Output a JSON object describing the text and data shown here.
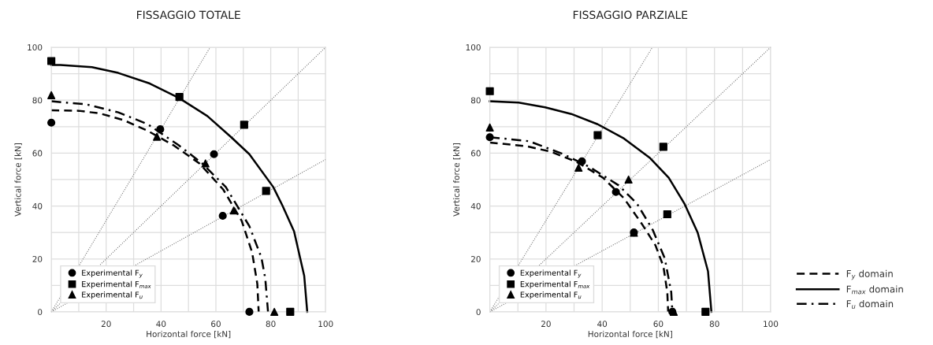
{
  "chart_data": [
    {
      "type": "scatter",
      "title": "FISSAGGIO TOTALE",
      "xlabel": "Horizontal force [kN]",
      "ylabel": "Vertical force [kN]",
      "xlim": [
        0,
        100
      ],
      "ylim": [
        0,
        100
      ],
      "xticks": [
        {
          "value": 0,
          "label": null
        },
        {
          "value": 10,
          "label": null
        },
        20,
        {
          "value": 30,
          "label": null
        },
        40,
        {
          "value": 50,
          "label": null
        },
        60,
        {
          "value": 70,
          "label": null
        },
        80,
        {
          "value": 90,
          "label": null
        },
        100
      ],
      "yticks": [
        0,
        {
          "value": 10,
          "label": null
        },
        20,
        {
          "value": 30,
          "label": null
        },
        40,
        {
          "value": 50,
          "label": null
        },
        60,
        {
          "value": 70,
          "label": null
        },
        80,
        {
          "value": 90,
          "label": null
        },
        100
      ],
      "grid": true,
      "legend": "bottom left",
      "series": [
        {
          "type": "line",
          "color": "#777777",
          "line_style": "dotted",
          "marker": "none",
          "x": [
            0,
            57.9
          ],
          "values": [
            0,
            100
          ]
        },
        {
          "type": "line",
          "color": "#777777",
          "line_style": "dotted",
          "marker": "none",
          "x": [
            0,
            100
          ],
          "values": [
            0,
            100
          ]
        },
        {
          "type": "line",
          "color": "#777777",
          "line_style": "dotted",
          "marker": "none",
          "x": [
            0,
            100
          ],
          "values": [
            0,
            57.6
          ]
        },
        {
          "type": "line",
          "color": "#000000",
          "line_style": "dashed",
          "marker": "none",
          "x": [
            0,
            10,
            17.7,
            26.3,
            35,
            44.5,
            54,
            62.7,
            69.4,
            73.2,
            75.1,
            75.6
          ],
          "values": [
            76.2,
            76,
            75,
            72.5,
            68.5,
            63,
            56.1,
            46.2,
            34.4,
            22.5,
            10.6,
            0
          ]
        },
        {
          "type": "line",
          "color": "#000000",
          "line_style": "solid",
          "marker": "none",
          "x": [
            0,
            3.3,
            14.8,
            24.4,
            35.9,
            46.4,
            56.9,
            65.6,
            72.2,
            80.9,
            84.2,
            88.5,
            92.2,
            93.3
          ],
          "values": [
            93.3,
            93.3,
            92.5,
            90.3,
            86.3,
            80.9,
            74,
            66,
            59.6,
            47.2,
            40.3,
            30.4,
            13.6,
            0
          ]
        },
        {
          "type": "line",
          "color": "#000000",
          "line_style": "dashdot",
          "marker": "none",
          "x": [
            0,
            12.9,
            24.4,
            35,
            46.4,
            55,
            63.6,
            72.2,
            76.6,
            78,
            79
          ],
          "values": [
            79.6,
            78.4,
            75.4,
            71,
            63,
            56.1,
            47.2,
            32.4,
            20.5,
            12.6,
            0
          ]
        },
        {
          "name": "Experimental F$_{y}$",
          "color": "#000000",
          "marker": "circle",
          "x": [
            0,
            39.7,
            59.3,
            62.5,
            72.2
          ],
          "values": [
            71.5,
            69,
            59.6,
            36.3,
            0
          ]
        },
        {
          "name": "Experimental F$_{max}$",
          "color": "#000000",
          "marker": "square",
          "x": [
            0,
            46.7,
            70.3,
            78.3,
            87.1
          ],
          "values": [
            94.8,
            81.2,
            70.7,
            45.7,
            0
          ]
        },
        {
          "name": "Experimental F$_{u}$",
          "color": "#000000",
          "marker": "triangle",
          "x": [
            0,
            38.5,
            56.2,
            66.5,
            81.3
          ],
          "values": [
            81.9,
            66.2,
            56.1,
            38.3,
            0
          ]
        }
      ]
    },
    {
      "type": "scatter",
      "title": "FISSAGGIO PARZIALE",
      "xlabel": "Horizontal force [kN]",
      "ylabel": "Vertical force [kN]",
      "xlim": [
        0,
        100
      ],
      "ylim": [
        0,
        100
      ],
      "xticks": [
        {
          "value": 0,
          "label": null
        },
        {
          "value": 10,
          "label": null
        },
        20,
        {
          "value": 30,
          "label": null
        },
        40,
        {
          "value": 50,
          "label": null
        },
        60,
        {
          "value": 70,
          "label": null
        },
        80,
        {
          "value": 90,
          "label": null
        },
        100
      ],
      "yticks": [
        0,
        {
          "value": 10,
          "label": null
        },
        20,
        {
          "value": 30,
          "label": null
        },
        40,
        {
          "value": 50,
          "label": null
        },
        60,
        {
          "value": 70,
          "label": null
        },
        80,
        {
          "value": 90,
          "label": null
        },
        100
      ],
      "grid": true,
      "legend": "bottom right",
      "series": [
        {
          "type": "line",
          "color": "#777777",
          "line_style": "dotted",
          "marker": "none",
          "x": [
            0,
            57.9
          ],
          "values": [
            0,
            100
          ]
        },
        {
          "type": "line",
          "color": "#777777",
          "line_style": "dotted",
          "marker": "none",
          "x": [
            0,
            100
          ],
          "values": [
            0,
            100
          ]
        },
        {
          "type": "line",
          "color": "#777777",
          "line_style": "dotted",
          "marker": "none",
          "x": [
            0,
            100
          ],
          "values": [
            0,
            57.6
          ]
        },
        {
          "name": "F$_{y}$ domain",
          "type": "line",
          "color": "#000000",
          "line_style": "dashed",
          "marker": "none",
          "x": [
            0,
            13.1,
            21.5,
            30.9,
            40.3,
            47.8,
            54.3,
            59,
            61.8,
            63.2,
            63.5
          ],
          "values": [
            64,
            62.6,
            60.6,
            56.7,
            50.7,
            42.9,
            33,
            25.1,
            17.2,
            7.4,
            0
          ]
        },
        {
          "name": "F$_{max}$ domain",
          "type": "line",
          "color": "#000000",
          "line_style": "solid",
          "marker": "none",
          "x": [
            0,
            10.3,
            19.7,
            29,
            38.4,
            47.8,
            57.1,
            63.7,
            69.3,
            74,
            77.7,
            78.9
          ],
          "values": [
            79.6,
            79.1,
            77.3,
            74.8,
            70.9,
            65.5,
            58.1,
            50.7,
            40.9,
            30,
            15.3,
            0
          ]
        },
        {
          "name": "F$_{u}$ domain",
          "type": "line",
          "color": "#000000",
          "line_style": "dashdot",
          "marker": "none",
          "x": [
            0,
            14,
            26.2,
            35.6,
            45.9,
            52.4,
            58,
            62.3,
            64.6,
            65
          ],
          "values": [
            66,
            64.5,
            59.6,
            54.7,
            47.8,
            40.9,
            31,
            20.2,
            7.4,
            0
          ]
        },
        {
          "name": "Experimental F$_{y}$",
          "color": "#000000",
          "marker": "circle",
          "x": [
            0,
            32.8,
            44.9,
            51.3,
            65
          ],
          "values": [
            66,
            56.9,
            45.3,
            30,
            0
          ]
        },
        {
          "name": "Experimental F$_{max}$",
          "color": "#000000",
          "marker": "square",
          "x": [
            0,
            38.4,
            61.8,
            63.2,
            76.8
          ],
          "values": [
            83.4,
            66.8,
            62.4,
            36.9,
            0
          ]
        },
        {
          "name": "Experimental F$_{u}$",
          "color": "#000000",
          "marker": "triangle",
          "x": [
            0,
            31.6,
            49.4,
            51.3,
            65.5
          ],
          "values": [
            69.7,
            54.5,
            50,
            29.9,
            0
          ]
        }
      ]
    }
  ]
}
